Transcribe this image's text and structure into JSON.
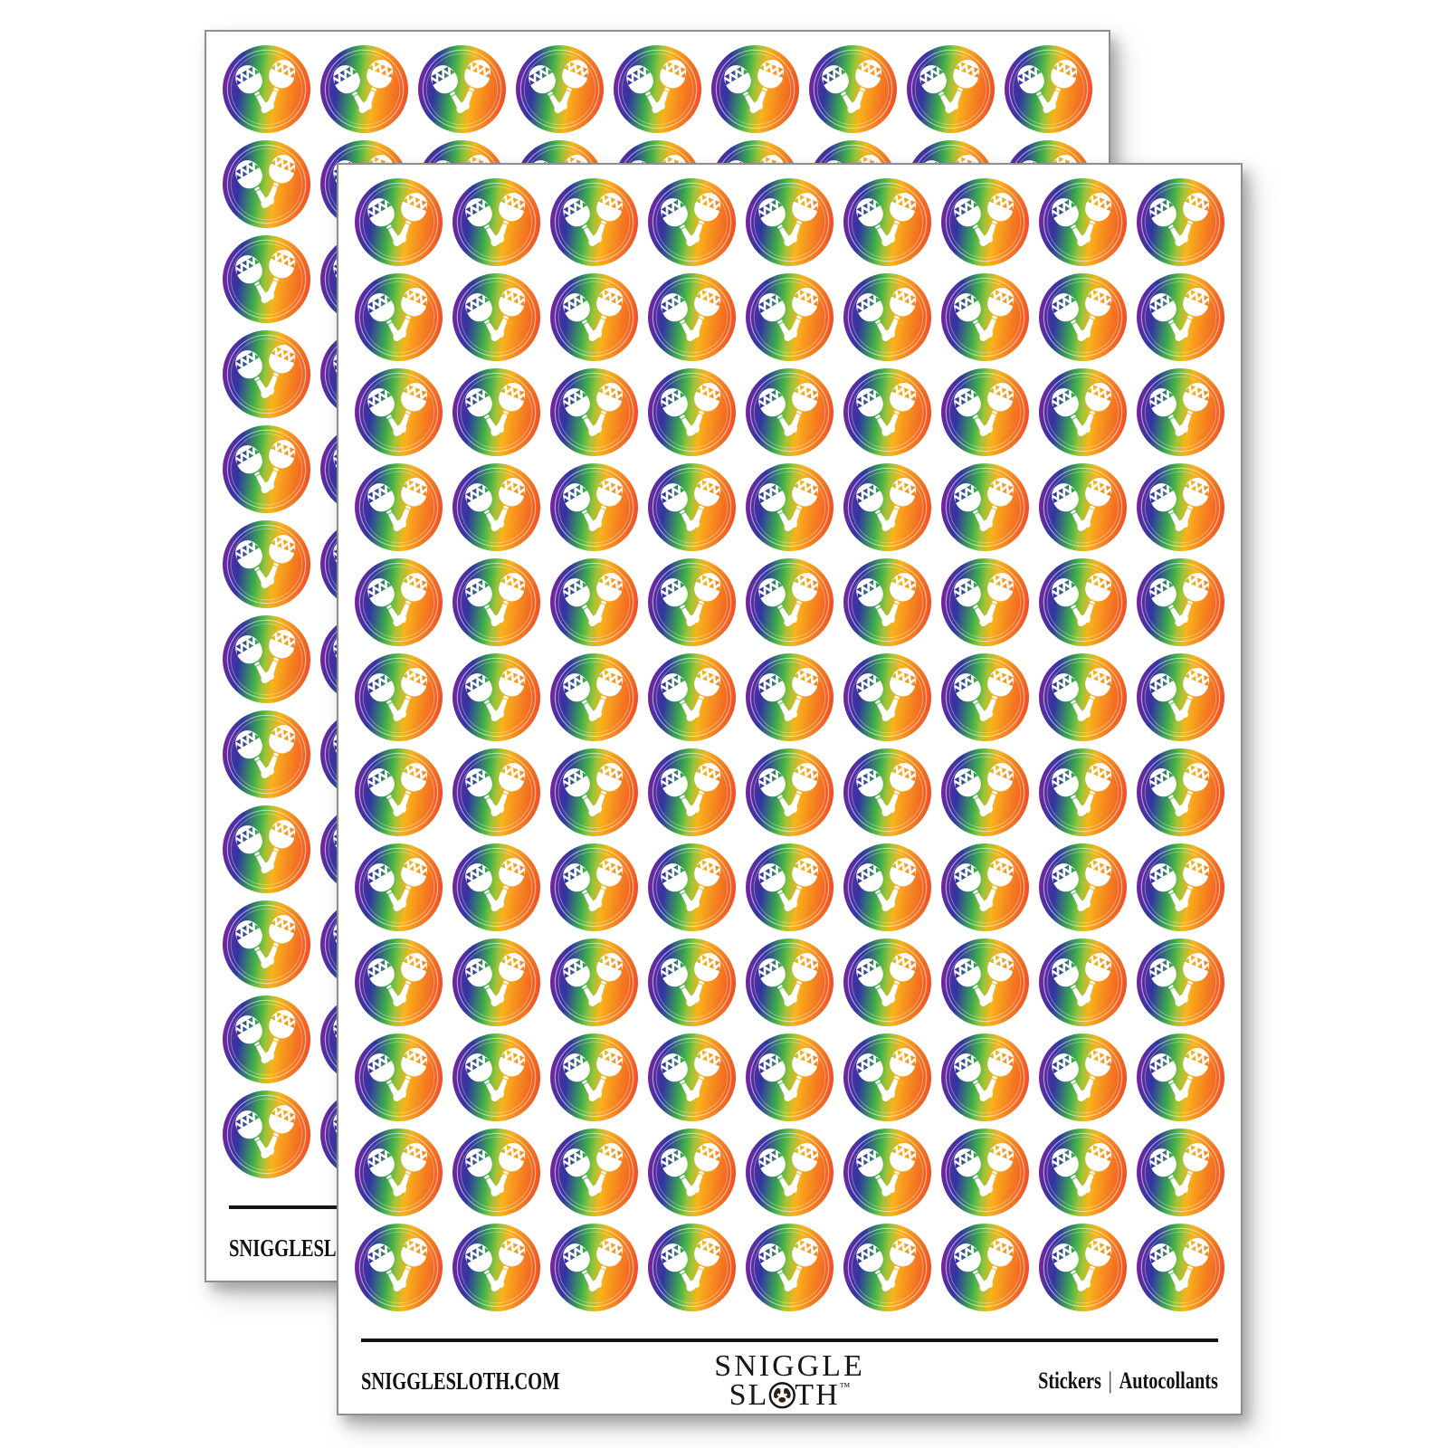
{
  "product": {
    "description": "Two overlapping round sticker sheets with rainbow maracas stickers",
    "sheet_count": 2
  },
  "sheet": {
    "grid": {
      "columns": 9,
      "rows": 12
    },
    "sticker": {
      "icon": "maracas-icon",
      "icon_color": "#FFFFFF",
      "ring_color_outer": "rgba(255,255,255,0.55)",
      "ring_color_inner": "rgba(255,255,255,0.33)",
      "gradient_angle": "97deg",
      "gradient_stops": [
        {
          "color": "#951B9E",
          "pos": "0%"
        },
        {
          "color": "#5F2AA0",
          "pos": "10%"
        },
        {
          "color": "#3136A2",
          "pos": "22%"
        },
        {
          "color": "#3EAF4A",
          "pos": "40%"
        },
        {
          "color": "#9BC43A",
          "pos": "49%"
        },
        {
          "color": "#F9B31B",
          "pos": "59%"
        },
        {
          "color": "#F58220",
          "pos": "76%"
        },
        {
          "color": "#F15A25",
          "pos": "91%"
        },
        {
          "color": "#EF3B24",
          "pos": "100%"
        }
      ]
    },
    "footer": {
      "website": "SNIGGLESLOTH.COM",
      "brand_line1": "SNIGGLE",
      "brand_line2_pre": "SL",
      "brand_line2_post": "TH",
      "trademark": "™",
      "type_en": "Stickers",
      "separator": "|",
      "type_fr": "Autocollants"
    }
  }
}
